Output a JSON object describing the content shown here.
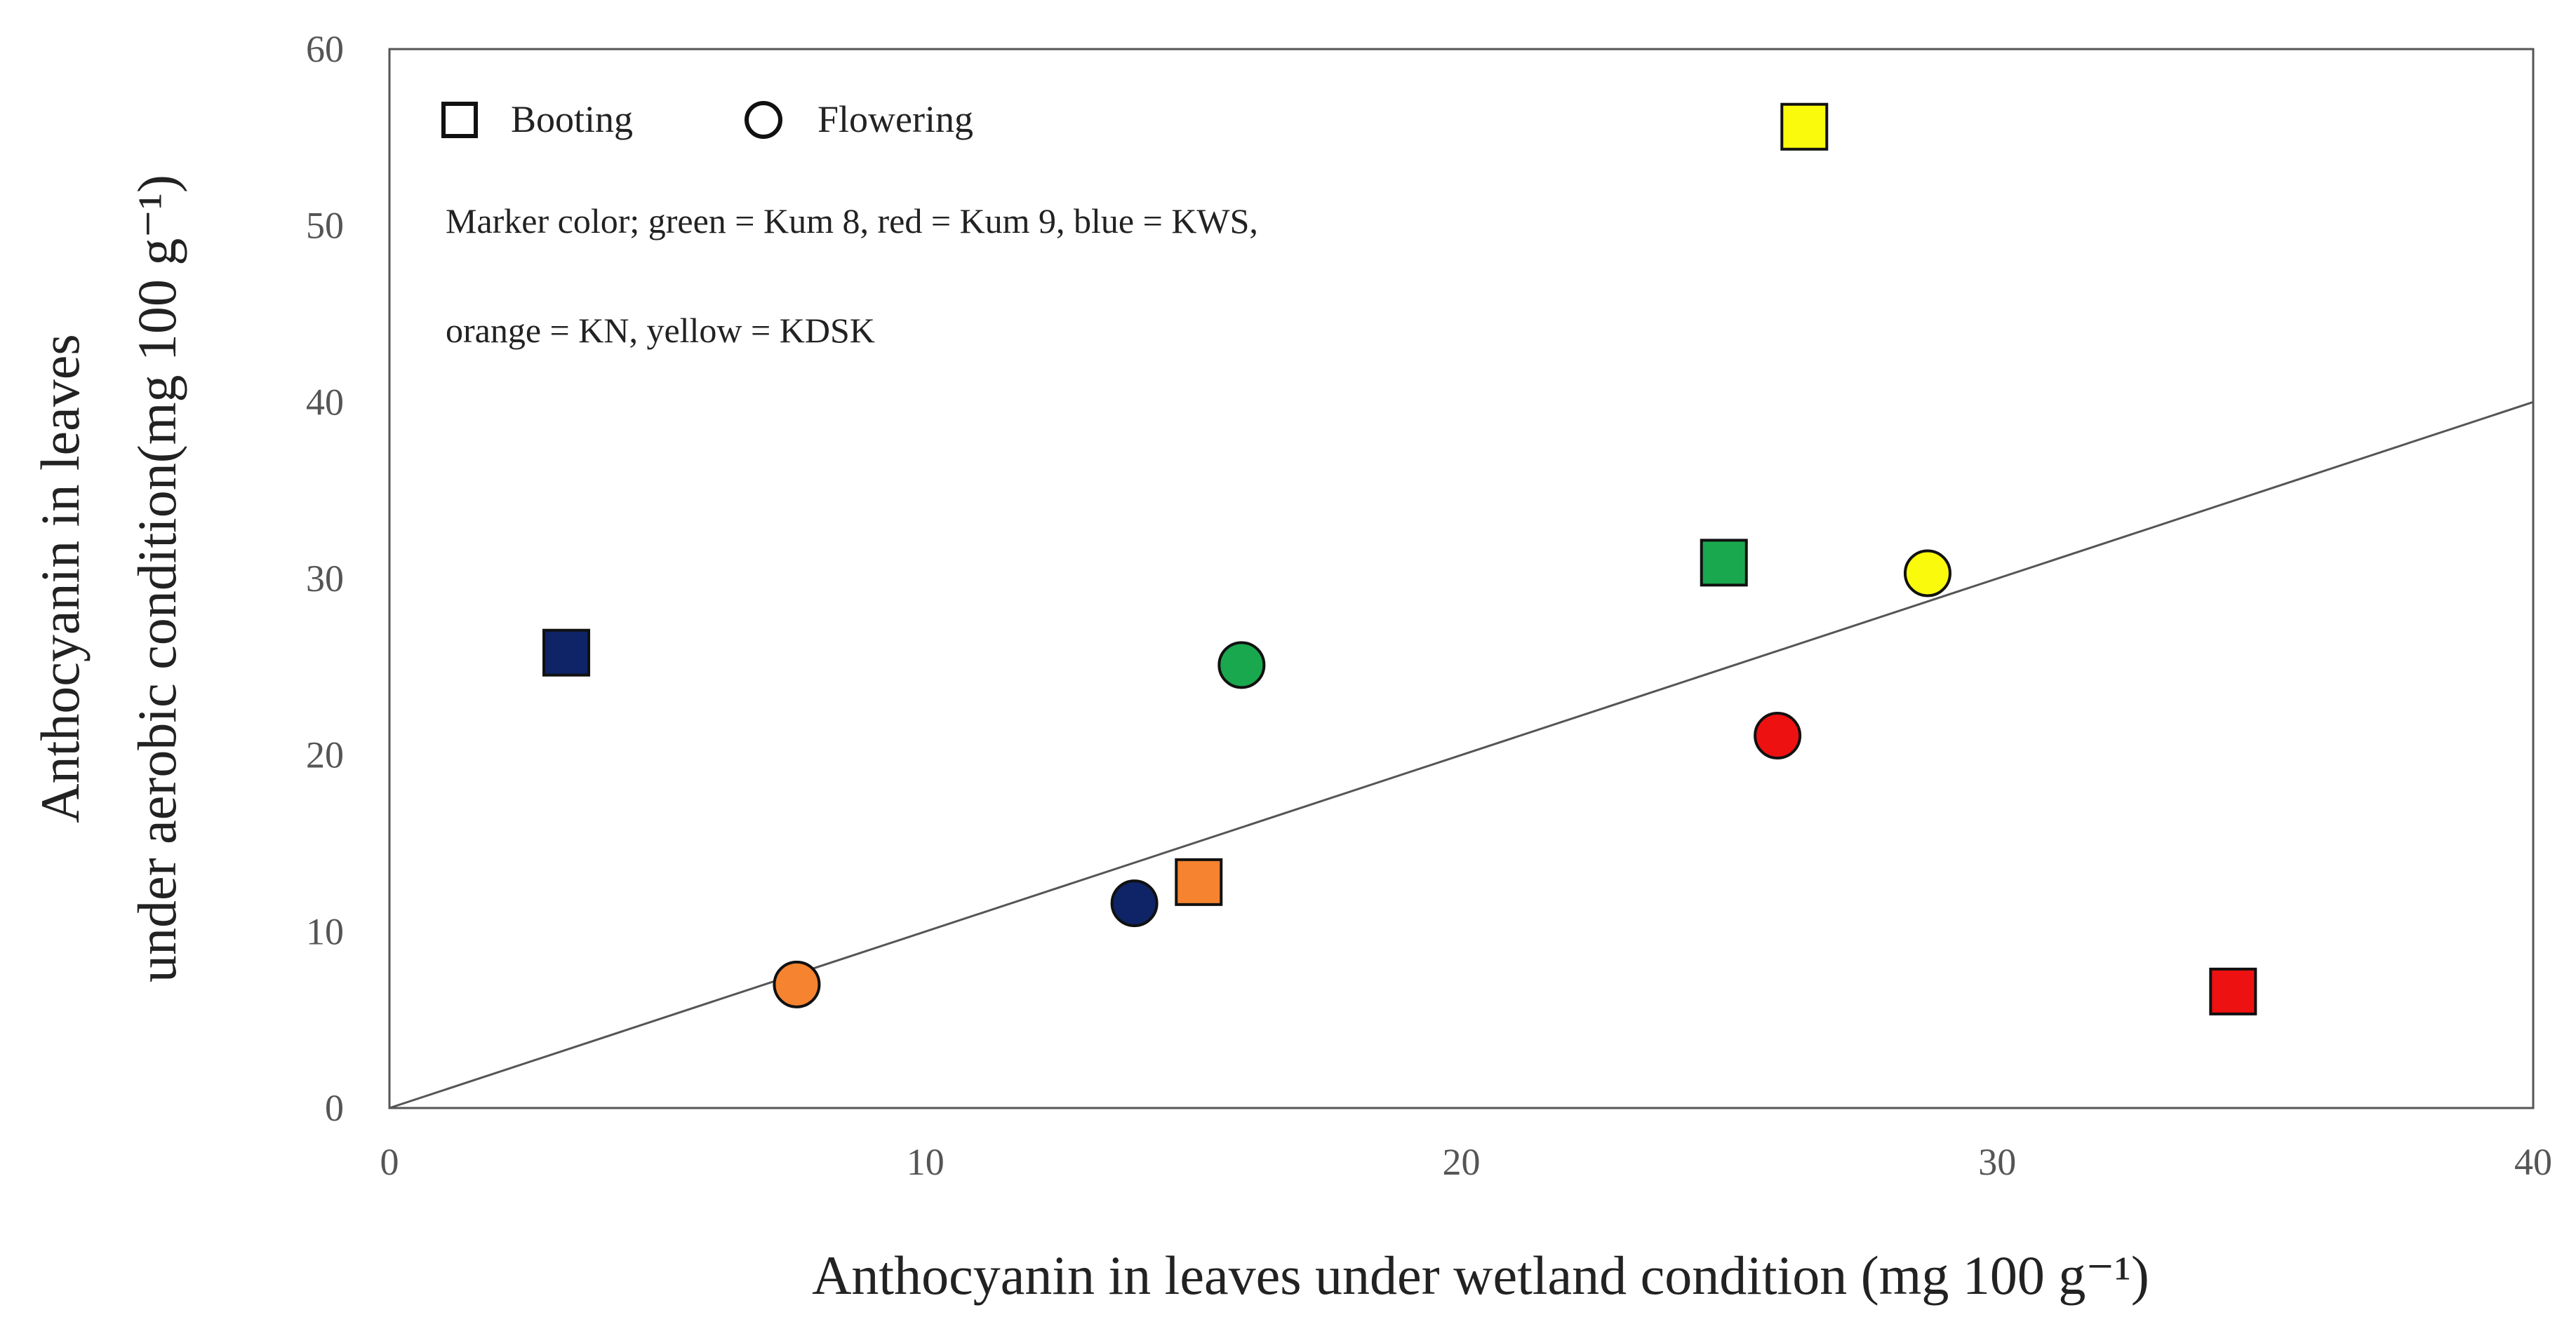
{
  "chart_data": {
    "type": "scatter",
    "xlabel": "Anthocyanin in leaves under wetland condition (mg 100 g⁻¹)",
    "ylabel_line1": "Anthocyanin in leaves",
    "ylabel_line2": "under aerobic condition(mg 100 g⁻¹)",
    "xlim": [
      0,
      40
    ],
    "ylim": [
      0,
      60
    ],
    "x_ticks": [
      "0",
      "10",
      "20",
      "30",
      "40"
    ],
    "y_ticks": [
      "0",
      "10",
      "20",
      "30",
      "40",
      "50",
      "60"
    ],
    "legend": {
      "booting": "Booting",
      "flowering": "Flowering"
    },
    "note_line1": "Marker color; green = Kum 8, red = Kum 9, blue = KWS,",
    "note_line2": "orange = KN, yellow = KDSK",
    "trendline": {
      "x": [
        0,
        40
      ],
      "y": [
        0,
        40
      ]
    },
    "colors": {
      "green": "#1aa84e",
      "red": "#ee1111",
      "blue": "#0e2466",
      "orange": "#f5832f",
      "yellow": "#fafa0c"
    },
    "points": [
      {
        "stage": "booting",
        "color": "blue",
        "x": 3.3,
        "y": 25.8
      },
      {
        "stage": "booting",
        "color": "orange",
        "x": 15.1,
        "y": 12.8
      },
      {
        "stage": "booting",
        "color": "green",
        "x": 24.9,
        "y": 30.9
      },
      {
        "stage": "booting",
        "color": "yellow",
        "x": 26.4,
        "y": 55.6
      },
      {
        "stage": "booting",
        "color": "red",
        "x": 34.4,
        "y": 6.6
      },
      {
        "stage": "flowering",
        "color": "orange",
        "x": 7.6,
        "y": 7.0
      },
      {
        "stage": "flowering",
        "color": "blue",
        "x": 13.9,
        "y": 11.6
      },
      {
        "stage": "flowering",
        "color": "green",
        "x": 15.9,
        "y": 25.1
      },
      {
        "stage": "flowering",
        "color": "red",
        "x": 25.9,
        "y": 21.1
      },
      {
        "stage": "flowering",
        "color": "yellow",
        "x": 28.7,
        "y": 30.3
      }
    ]
  }
}
